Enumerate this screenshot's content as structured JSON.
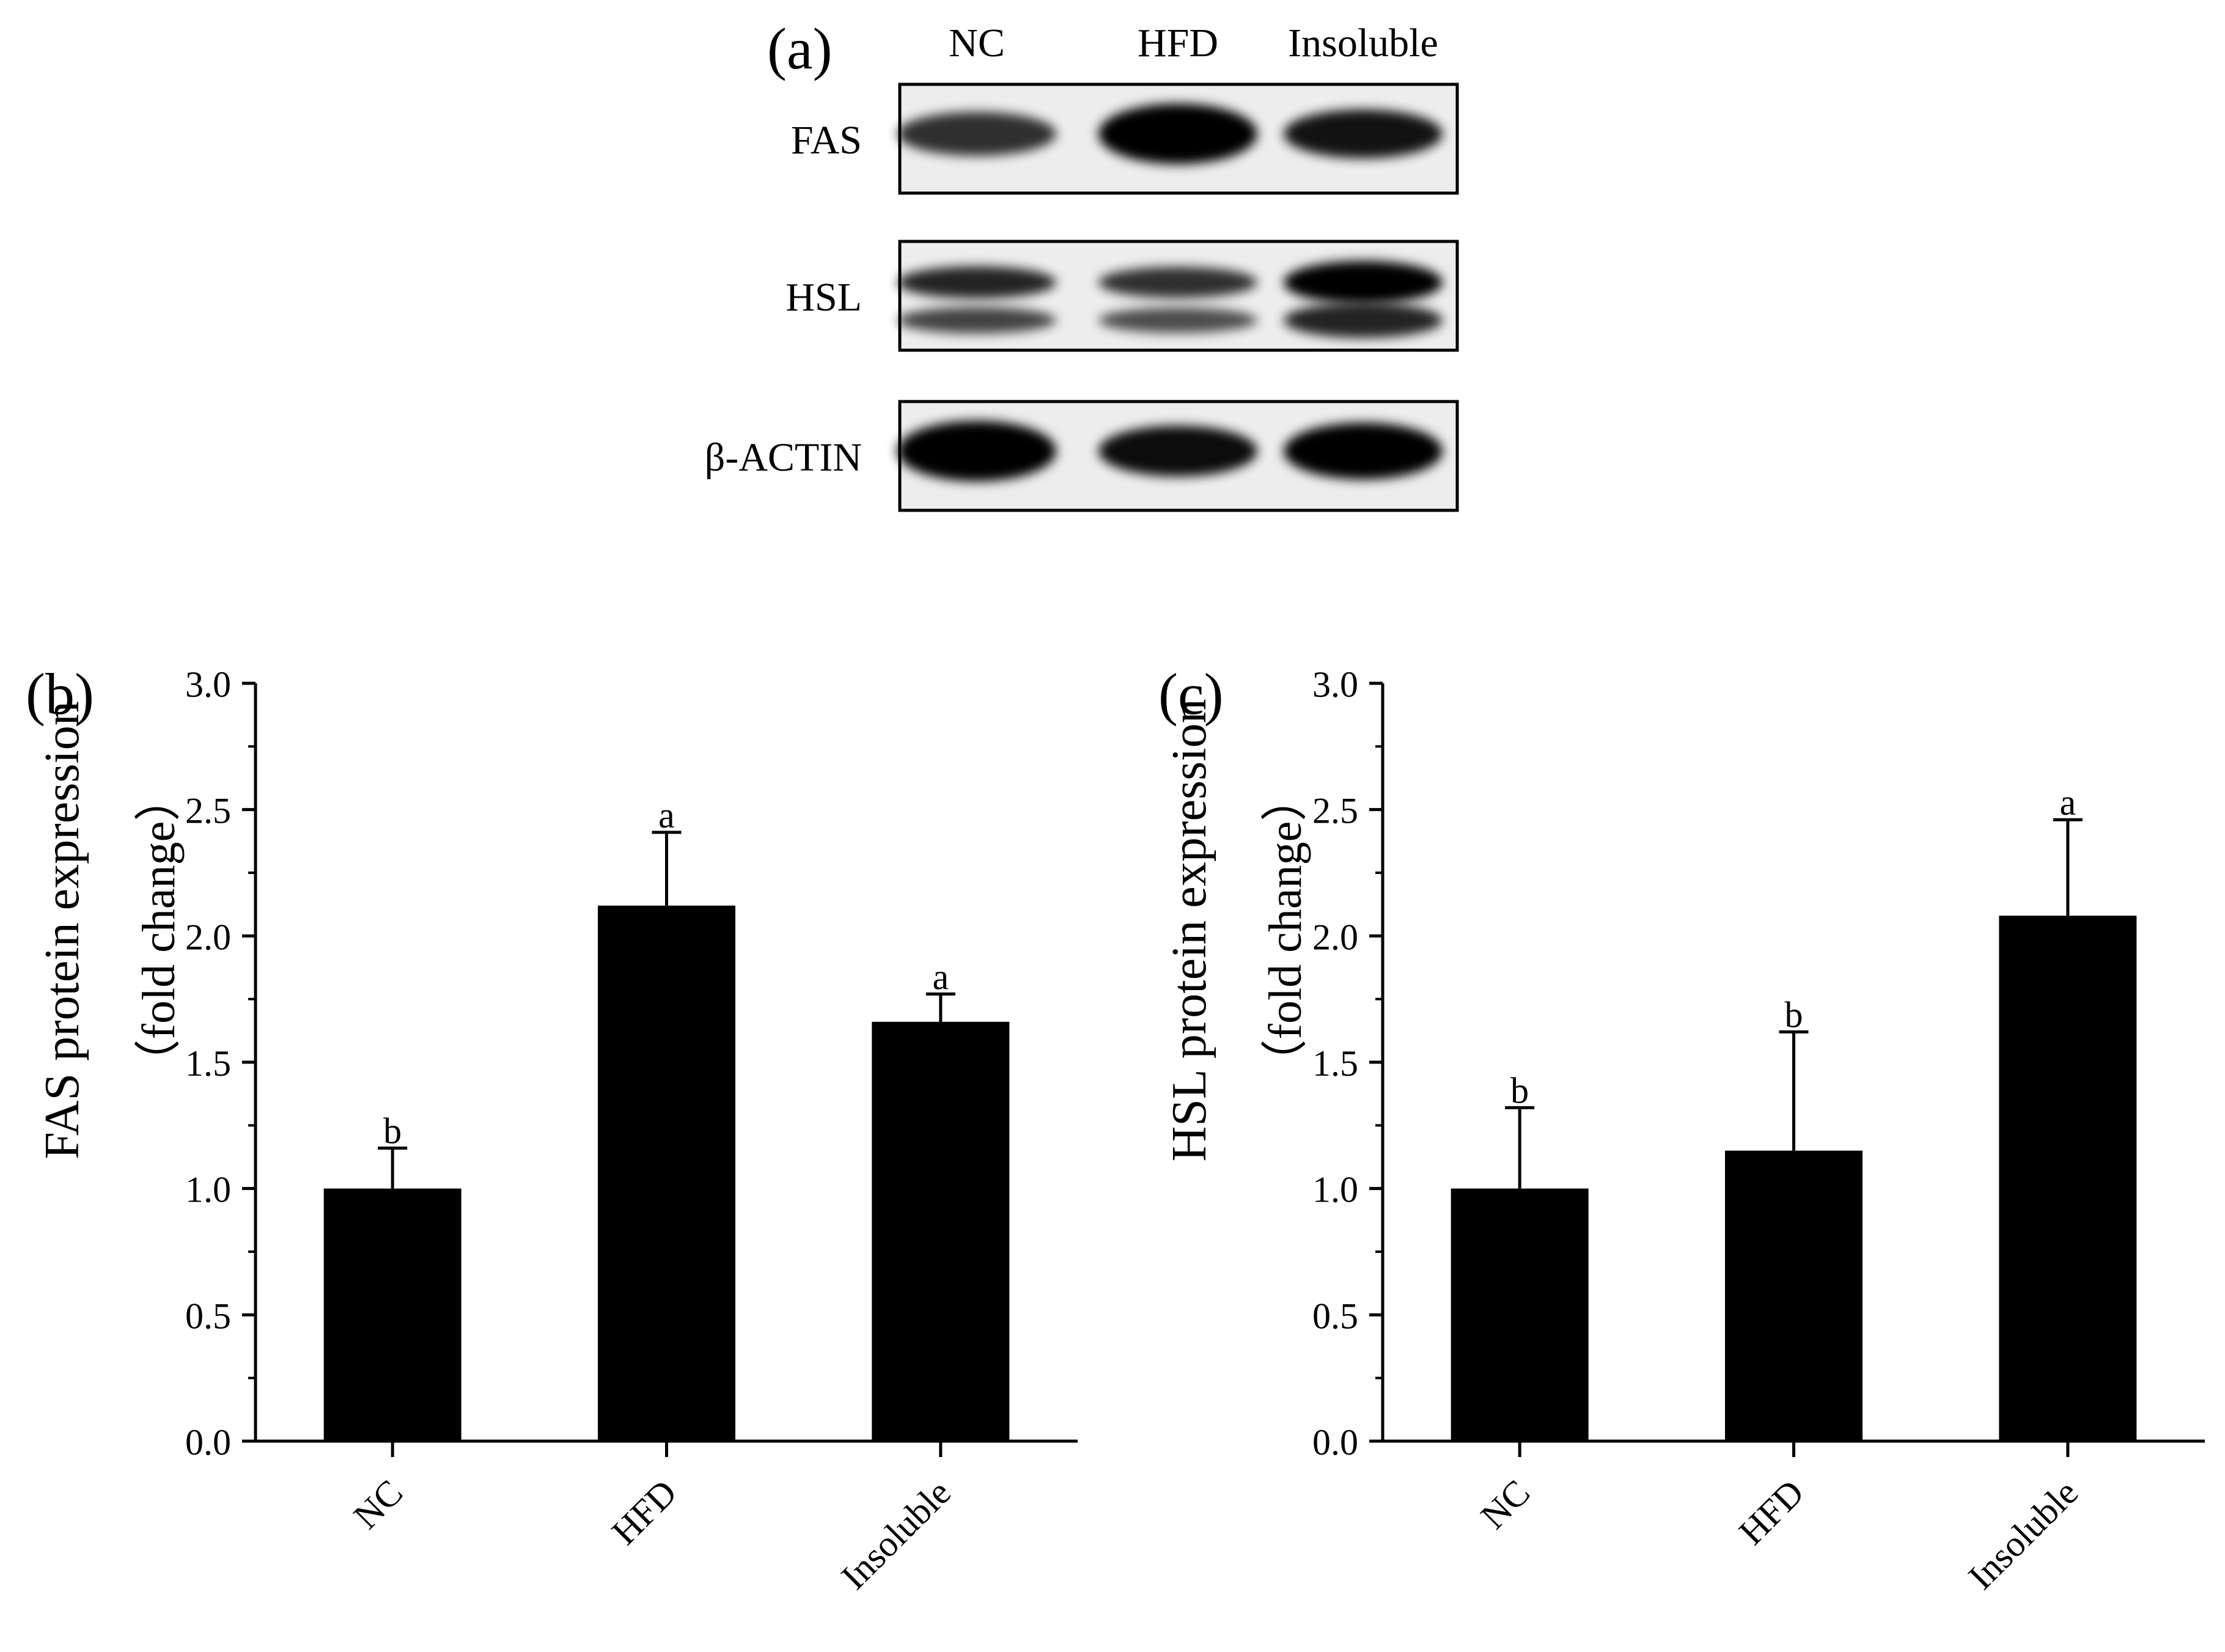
{
  "blot": {
    "panel_label": "(a)",
    "lanes": [
      "NC",
      "HFD",
      "Insoluble"
    ],
    "rows": [
      {
        "label": "FAS",
        "bands": [
          {
            "intensity": 0.8,
            "thickness": 0.45
          },
          {
            "intensity": 1.0,
            "thickness": 0.62
          },
          {
            "intensity": 0.92,
            "thickness": 0.5
          }
        ]
      },
      {
        "label": "HSL",
        "bands": [
          {
            "intensity": 0.85,
            "thickness": 0.6
          },
          {
            "intensity": 0.8,
            "thickness": 0.58
          },
          {
            "intensity": 1.0,
            "thickness": 0.8
          }
        ]
      },
      {
        "label": "β-ACTIN",
        "bands": [
          {
            "intensity": 1.0,
            "thickness": 0.62
          },
          {
            "intensity": 0.95,
            "thickness": 0.52
          },
          {
            "intensity": 1.0,
            "thickness": 0.58
          }
        ]
      }
    ]
  },
  "chart_data": [
    {
      "type": "bar",
      "panel_label": "(b)",
      "categories": [
        "NC",
        "HFD",
        "Insoluble"
      ],
      "values": [
        1.0,
        2.12,
        1.66
      ],
      "errors": [
        0.16,
        0.29,
        0.11
      ],
      "significance": [
        "b",
        "a",
        "a"
      ],
      "ylabel_line1": "FAS protein expression",
      "ylabel_line2": "（fold change）",
      "ylim": [
        0,
        3.0
      ],
      "yticks": [
        "0.0",
        "0.5",
        "1.0",
        "1.5",
        "2.0",
        "2.5",
        "3.0"
      ],
      "bar_color": "#000000"
    },
    {
      "type": "bar",
      "panel_label": "(c)",
      "categories": [
        "NC",
        "HFD",
        "Insoluble"
      ],
      "values": [
        1.0,
        1.15,
        2.08
      ],
      "errors": [
        0.32,
        0.47,
        0.38
      ],
      "significance": [
        "b",
        "b",
        "a"
      ],
      "ylabel_line1": "HSL protein expression",
      "ylabel_line2": "（fold change）",
      "ylim": [
        0,
        3.0
      ],
      "yticks": [
        "0.0",
        "0.5",
        "1.0",
        "1.5",
        "2.0",
        "2.5",
        "3.0"
      ],
      "bar_color": "#000000"
    }
  ]
}
